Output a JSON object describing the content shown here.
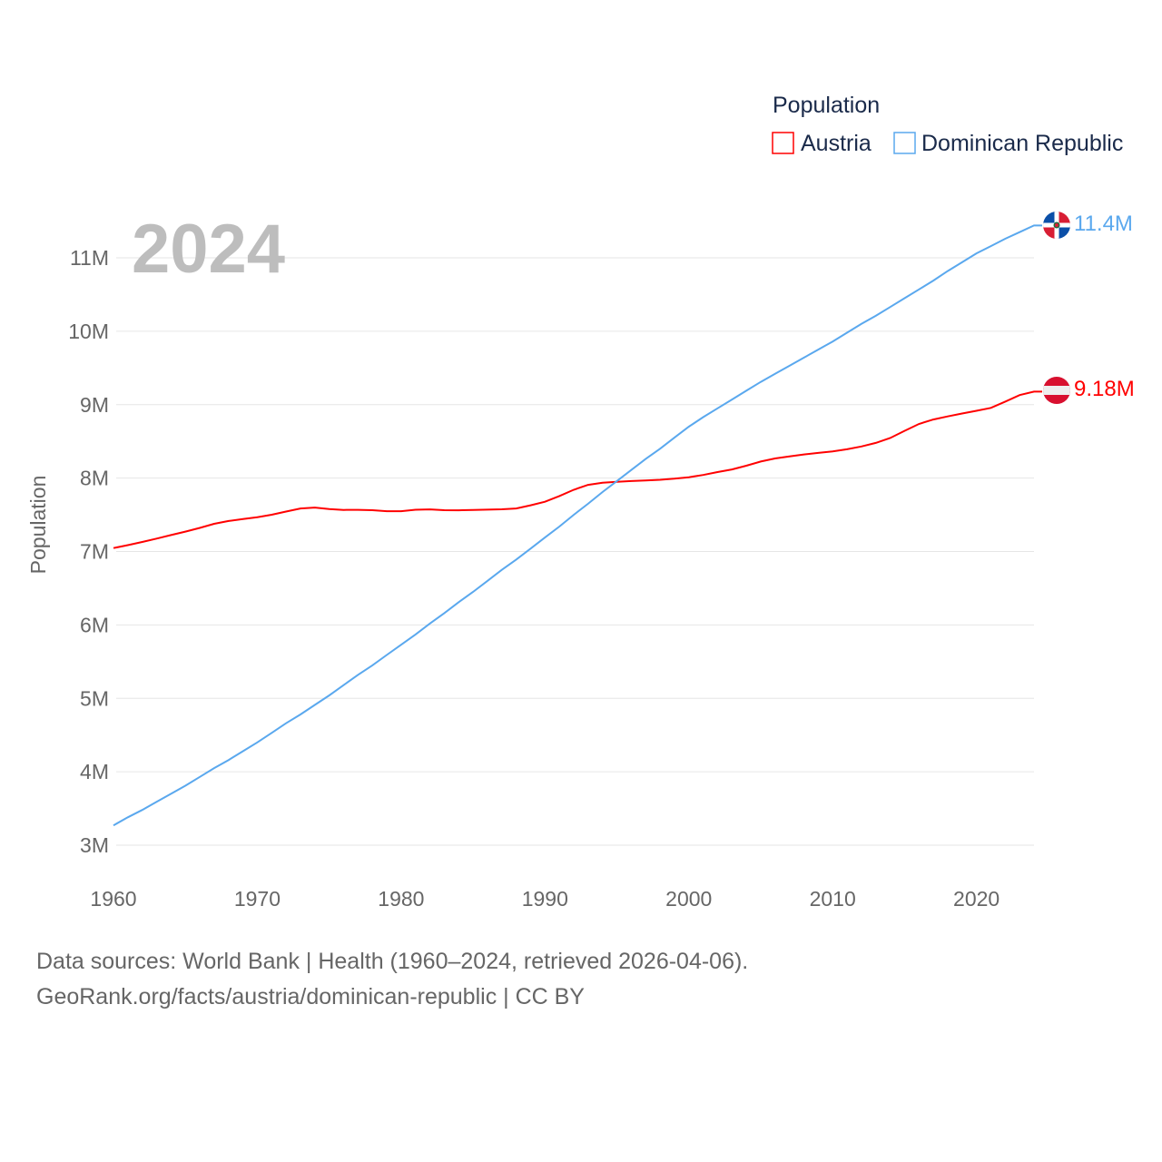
{
  "chart_data": {
    "type": "line",
    "title": "2024",
    "xlabel": "",
    "ylabel": "Population",
    "xlim": [
      1960,
      2024
    ],
    "ylim": [
      3000000,
      11000000
    ],
    "x_ticks": [
      "1960",
      "1970",
      "1980",
      "1990",
      "2000",
      "2010",
      "2020"
    ],
    "y_ticks": [
      "3M",
      "4M",
      "5M",
      "6M",
      "7M",
      "8M",
      "9M",
      "10M",
      "11M"
    ],
    "grid": true,
    "legend": {
      "title": "Population",
      "placement": "top-right"
    },
    "series": [
      {
        "name": "Austria",
        "color": "#ff0000",
        "end_label": "9.18M",
        "flag": "austria-flag",
        "values": [
          7.047,
          7.086,
          7.13,
          7.176,
          7.224,
          7.271,
          7.322,
          7.377,
          7.415,
          7.441,
          7.467,
          7.501,
          7.544,
          7.586,
          7.599,
          7.579,
          7.566,
          7.568,
          7.562,
          7.549,
          7.549,
          7.569,
          7.574,
          7.562,
          7.561,
          7.565,
          7.57,
          7.575,
          7.586,
          7.629,
          7.678,
          7.755,
          7.841,
          7.907,
          7.937,
          7.948,
          7.959,
          7.968,
          7.977,
          7.992,
          8.012,
          8.042,
          8.082,
          8.118,
          8.169,
          8.225,
          8.268,
          8.295,
          8.322,
          8.343,
          8.363,
          8.392,
          8.43,
          8.479,
          8.546,
          8.643,
          8.737,
          8.798,
          8.84,
          8.88,
          8.917,
          8.956,
          9.042,
          9.131,
          9.178
        ]
      },
      {
        "name": "Dominican Republic",
        "color": "#5aa8ee",
        "end_label": "11.4M",
        "flag": "dominican-republic-flag",
        "values": [
          3.27,
          3.38,
          3.48,
          3.59,
          3.7,
          3.81,
          3.93,
          4.05,
          4.16,
          4.28,
          4.4,
          4.53,
          4.66,
          4.78,
          4.91,
          5.04,
          5.18,
          5.32,
          5.45,
          5.59,
          5.73,
          5.87,
          6.02,
          6.16,
          6.31,
          6.45,
          6.6,
          6.75,
          6.89,
          7.04,
          7.19,
          7.34,
          7.5,
          7.65,
          7.81,
          7.96,
          8.11,
          8.26,
          8.4,
          8.55,
          8.7,
          8.83,
          8.95,
          9.07,
          9.19,
          9.31,
          9.42,
          9.53,
          9.64,
          9.75,
          9.86,
          9.98,
          10.1,
          10.21,
          10.33,
          10.45,
          10.57,
          10.69,
          10.82,
          10.94,
          11.06,
          11.16,
          11.26,
          11.35,
          11.44
        ]
      }
    ],
    "values_unit": "millions"
  },
  "footer": {
    "line1": "Data sources: World Bank | Health (1960–2024, retrieved 2026-04-06).",
    "line2": "GeoRank.org/facts/austria/dominican-republic | CC BY"
  }
}
